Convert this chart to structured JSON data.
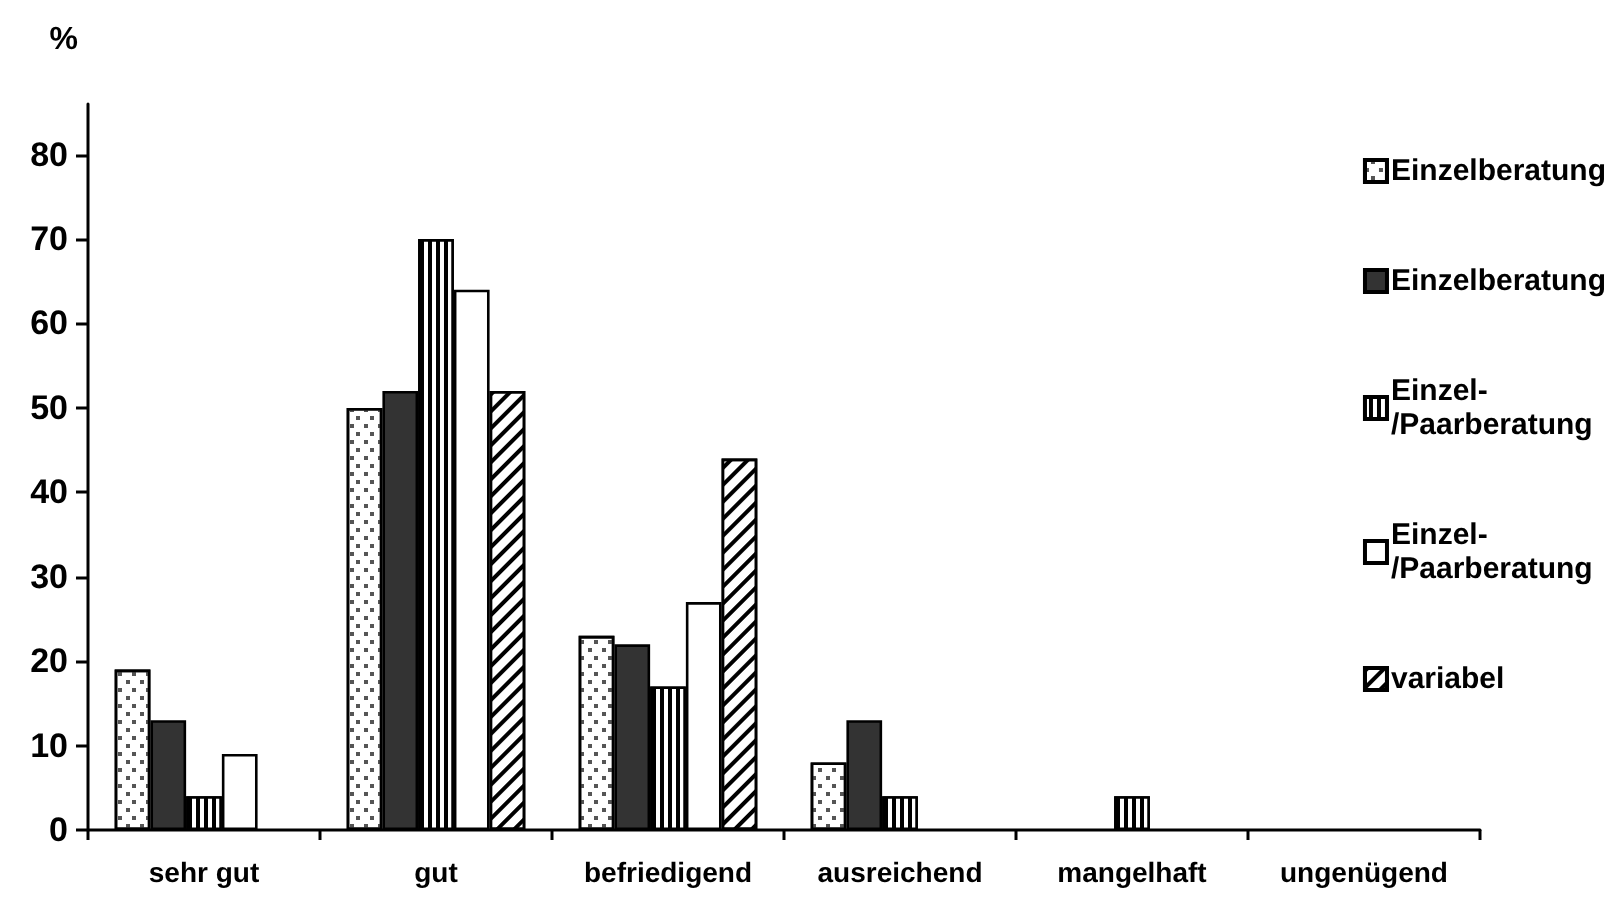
{
  "chart_data": {
    "type": "bar",
    "ylabel": "%",
    "categories": [
      "sehr gut",
      "gut",
      "befriedigend",
      "ausreichend",
      "mangelhaft",
      "ungenügend"
    ],
    "series": [
      {
        "name": "Einzelberatung",
        "color": "#ffffff",
        "values": [
          19,
          50,
          23,
          8,
          null,
          null
        ]
      },
      {
        "name": "Einzelberatung",
        "color": "#333333",
        "values": [
          13,
          52,
          22,
          13,
          null,
          null
        ]
      },
      {
        "name": "Einzel-/Paarberatung",
        "color": "#000000",
        "values": [
          4,
          70,
          17,
          4,
          4,
          null
        ]
      },
      {
        "name": "Einzel-/Paarberatung",
        "color": "#ffffff",
        "values": [
          9,
          64,
          27,
          null,
          null,
          null
        ]
      },
      {
        "name": "variabel",
        "color": "#ffffff",
        "values": [
          null,
          52,
          44,
          null,
          null,
          null
        ]
      }
    ],
    "ylim": [
      0,
      86
    ],
    "yticks": [
      0,
      10,
      20,
      30,
      40,
      50,
      60,
      70,
      80
    ],
    "grid": false,
    "legend": "right"
  }
}
